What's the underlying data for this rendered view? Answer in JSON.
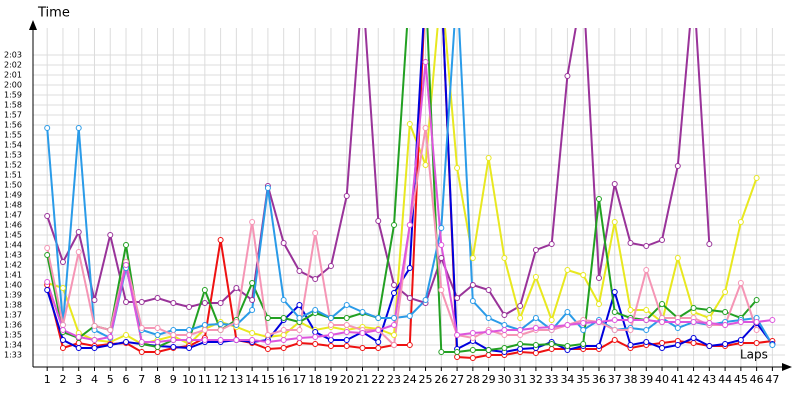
{
  "chart_data": {
    "type": "line",
    "ylabel": "Time",
    "xlabel": "Laps",
    "x": [
      1,
      2,
      3,
      4,
      5,
      6,
      7,
      8,
      9,
      10,
      11,
      12,
      13,
      14,
      15,
      16,
      17,
      18,
      19,
      20,
      21,
      22,
      23,
      24,
      25,
      26,
      27,
      28,
      29,
      30,
      31,
      32,
      33,
      34,
      35,
      36,
      37,
      38,
      39,
      40,
      41,
      42,
      43,
      44,
      45,
      46,
      47
    ],
    "xlim": [
      0.1,
      47.8
    ],
    "ylim": [
      91.8,
      125.7
    ],
    "yticks": [
      {
        "value": 93,
        "label": "1:33"
      },
      {
        "value": 94,
        "label": "1:34"
      },
      {
        "value": 95,
        "label": "1:35"
      },
      {
        "value": 96,
        "label": "1:36"
      },
      {
        "value": 97,
        "label": "1:37"
      },
      {
        "value": 98,
        "label": "1:38"
      },
      {
        "value": 99,
        "label": "1:39"
      },
      {
        "value": 100,
        "label": "1:40"
      },
      {
        "value": 101,
        "label": "1:41"
      },
      {
        "value": 102,
        "label": "1:42"
      },
      {
        "value": 103,
        "label": "1:43"
      },
      {
        "value": 104,
        "label": "1:44"
      },
      {
        "value": 105,
        "label": "1:45"
      },
      {
        "value": 106,
        "label": "1:46"
      },
      {
        "value": 107,
        "label": "1:47"
      },
      {
        "value": 108,
        "label": "1:48"
      },
      {
        "value": 109,
        "label": "1:49"
      },
      {
        "value": 110,
        "label": "1:50"
      },
      {
        "value": 111,
        "label": "1:51"
      },
      {
        "value": 112,
        "label": "1:52"
      },
      {
        "value": 113,
        "label": "1:53"
      },
      {
        "value": 114,
        "label": "1:54"
      },
      {
        "value": 115,
        "label": "1:55"
      },
      {
        "value": 116,
        "label": "1:56"
      },
      {
        "value": 117,
        "label": "1:57"
      },
      {
        "value": 118,
        "label": "1:58"
      },
      {
        "value": 119,
        "label": "1:59"
      },
      {
        "value": 120,
        "label": "2:00"
      },
      {
        "value": 121,
        "label": "2:01"
      },
      {
        "value": 122,
        "label": "2:02"
      },
      {
        "value": 123,
        "label": "2:03"
      }
    ],
    "grid": true,
    "series": [
      {
        "color": "#993399",
        "values": [
          106.9,
          102.3,
          105.3,
          98.5,
          105,
          98.3,
          98.3,
          98.7,
          98.2,
          97.8,
          98.2,
          98.2,
          99.7,
          98.5,
          109.9,
          104.2,
          101.4,
          100.6,
          101.9,
          108.9,
          130,
          106.4,
          100,
          98.7,
          98.2,
          102.7,
          98.7,
          100,
          99.5,
          97,
          97.9,
          103.5,
          104.1,
          120.9,
          130,
          100.7,
          110.1,
          104.2,
          103.9,
          104.5,
          111.9,
          130,
          104.1,
          null,
          null,
          null,
          null
        ]
      },
      {
        "color": "#e8e820",
        "values": [
          100.2,
          99.7,
          95.2,
          94.5,
          94.3,
          95,
          94.1,
          94.5,
          94.9,
          94.1,
          95.6,
          96.3,
          95.8,
          95.2,
          94.8,
          95,
          96.3,
          95.5,
          95.8,
          95.5,
          95.8,
          95.6,
          95,
          116.1,
          112,
          130,
          111.7,
          102.7,
          112.7,
          102.7,
          96.7,
          100.8,
          96.5,
          101.5,
          101,
          98.1,
          106.3,
          97.5,
          97.5,
          96.3,
          102.7,
          97.3,
          96.7,
          99.3,
          106.3,
          110.7,
          null
        ]
      },
      {
        "color": "#ee1111",
        "values": [
          100,
          93.7,
          94.2,
          93.9,
          94.1,
          94.2,
          93.3,
          93.3,
          93.7,
          93.9,
          94.7,
          104.5,
          94.5,
          94.2,
          93.6,
          93.7,
          94.2,
          94.1,
          93.9,
          93.9,
          93.7,
          93.7,
          94,
          94,
          130,
          130,
          92.8,
          92.7,
          93,
          93,
          93.3,
          93.2,
          93.6,
          93.6,
          93.6,
          93.6,
          94.5,
          93.7,
          94,
          94.2,
          94.4,
          94.2,
          93.9,
          93.9,
          94.2,
          94.2,
          94.4
        ]
      },
      {
        "color": "#0000dd",
        "values": [
          99.5,
          94.5,
          93.7,
          93.7,
          94,
          94.3,
          94.1,
          93.9,
          93.8,
          93.7,
          94.3,
          94.3,
          94.5,
          94.3,
          94.5,
          96.5,
          98,
          95.3,
          94.5,
          94.5,
          95.3,
          94.3,
          99.2,
          101.7,
          130,
          130,
          93.6,
          94.4,
          93.5,
          93.3,
          93.6,
          93.7,
          94.3,
          93.5,
          93.9,
          93.9,
          99.3,
          94,
          94.3,
          93.7,
          94,
          94.7,
          93.9,
          94.1,
          94.5,
          96.2,
          94.1
        ]
      },
      {
        "color": "#22a022",
        "values": [
          103,
          95.3,
          94.7,
          95.9,
          95.5,
          104,
          94.1,
          93.8,
          94.5,
          94.5,
          99.5,
          95.5,
          96.5,
          100.2,
          96.7,
          96.7,
          96.3,
          97.2,
          96.7,
          96.7,
          97.2,
          96.7,
          106,
          130,
          130,
          93.3,
          93.3,
          93.5,
          93.5,
          93.7,
          94.1,
          94,
          94.1,
          93.9,
          94.1,
          108.6,
          97.3,
          96.7,
          96.5,
          98.1,
          96.7,
          97.7,
          97.5,
          97.3,
          96.7,
          98.5,
          null
        ]
      },
      {
        "color": "#2a9be8",
        "values": [
          115.7,
          96,
          115.7,
          95.5,
          94.7,
          101.7,
          95.5,
          95,
          95.5,
          95.5,
          96,
          96.1,
          96,
          97.5,
          109.7,
          98.5,
          96.7,
          97.5,
          96.7,
          98,
          97.3,
          96.7,
          96.7,
          96.9,
          98.5,
          105.7,
          130,
          98.4,
          96.7,
          96,
          95.5,
          96.7,
          95.5,
          97.3,
          95.5,
          96.5,
          95.5,
          95.7,
          95.5,
          96.7,
          95.7,
          96.3,
          96,
          96.3,
          96.5,
          96.7,
          94
        ]
      },
      {
        "color": "#f595b5",
        "values": [
          103.7,
          96,
          103.3,
          95.9,
          95.5,
          102.3,
          95.7,
          95.7,
          95,
          95,
          95.5,
          95.5,
          96.3,
          106.3,
          95,
          95.5,
          95.5,
          105.2,
          96,
          96,
          95.5,
          95.5,
          94,
          106,
          115.7,
          99.5,
          95,
          94.7,
          95.5,
          95,
          95,
          95.5,
          95.5,
          96,
          96.5,
          96.3,
          95.5,
          95.5,
          101.5,
          96.7,
          96.7,
          96.7,
          96,
          96,
          100.2,
          95.5,
          null
        ]
      },
      {
        "color": "#dd55dd",
        "values": [
          100.3,
          95.5,
          94.8,
          94.5,
          94.8,
          102,
          94.3,
          94.3,
          94.5,
          94.5,
          94.5,
          94.5,
          94.5,
          94.5,
          94.3,
          94.5,
          94.7,
          94.8,
          95,
          95.3,
          95.2,
          95.5,
          96,
          106,
          122.3,
          104,
          95,
          95.2,
          95.3,
          95.5,
          95.5,
          95.7,
          95.8,
          96,
          96.2,
          96.3,
          96.5,
          96.5,
          96.5,
          96.3,
          96.3,
          96.3,
          96.2,
          96,
          96.3,
          96.3,
          96.5
        ]
      }
    ]
  }
}
